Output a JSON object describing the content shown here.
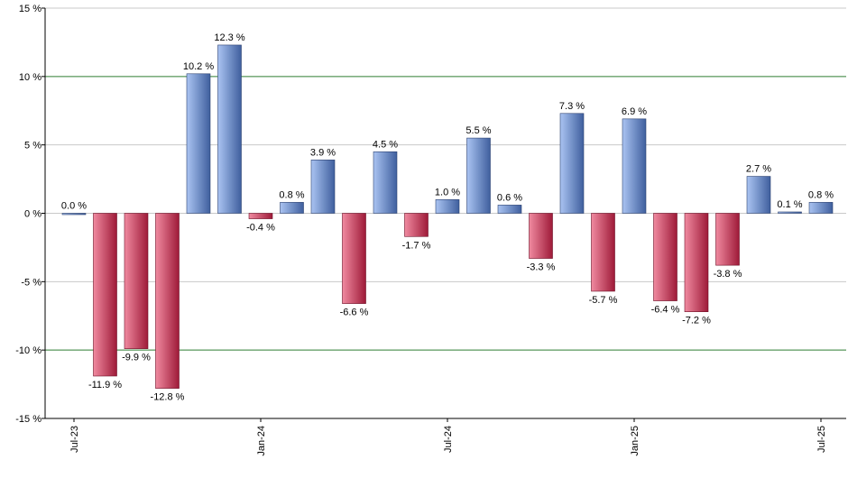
{
  "chart_data": {
    "type": "bar",
    "title": "",
    "xlabel": "",
    "ylabel": "",
    "ylim": [
      -15,
      15
    ],
    "y_ticks": [
      15,
      10,
      5,
      0,
      -5,
      -10,
      -15
    ],
    "y_tick_labels": [
      "15 %",
      "10 %",
      "5 %",
      "0 %",
      "-5 %",
      "-10 %",
      "-15 %"
    ],
    "highlight_gridlines": [
      10,
      -10
    ],
    "x_tick_labels": [
      {
        "label": "Jul-23",
        "index": 0
      },
      {
        "label": "Jan-24",
        "index": 6
      },
      {
        "label": "Jul-24",
        "index": 12
      },
      {
        "label": "Jan-25",
        "index": 18
      },
      {
        "label": "Jul-25",
        "index": 24
      }
    ],
    "values": [
      0.0,
      -11.9,
      -9.9,
      -12.8,
      10.2,
      12.3,
      -0.4,
      0.8,
      3.9,
      -6.6,
      4.5,
      -1.7,
      1.0,
      5.5,
      0.6,
      -3.3,
      7.3,
      -5.7,
      6.9,
      -6.4,
      -7.2,
      -3.8,
      2.7,
      0.1,
      0.8
    ],
    "data_labels": [
      "0.0 %",
      "-11.9 %",
      "-9.9 %",
      "-12.8 %",
      "10.2 %",
      "12.3 %",
      "-0.4 %",
      "0.8 %",
      "3.9 %",
      "-6.6 %",
      "4.5 %",
      "-1.7 %",
      "1.0 %",
      "5.5 %",
      "0.6 %",
      "-3.3 %",
      "7.3 %",
      "-5.7 %",
      "6.9 %",
      "-6.4 %",
      "-7.2 %",
      "-3.8 %",
      "2.7 %",
      "0.1 %",
      "0.8 %"
    ],
    "colors": {
      "positive_light": "#aac4f2",
      "positive_dark": "#3f5f9e",
      "negative_light": "#f08aa0",
      "negative_dark": "#9e1a38",
      "grid": "#c8c8c8",
      "highlight_grid": "#2e7d32",
      "axis": "#000000"
    }
  }
}
